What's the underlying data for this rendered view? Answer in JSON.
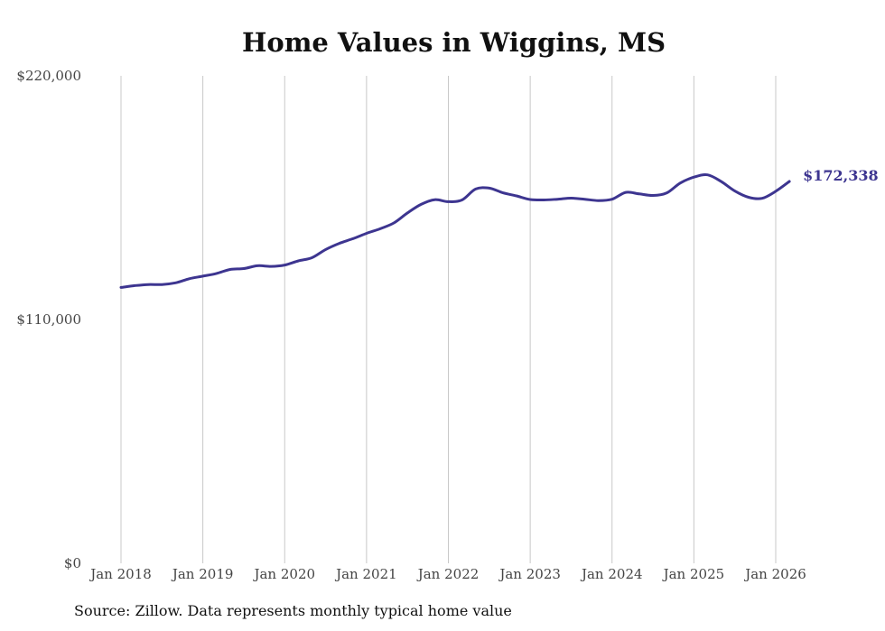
{
  "source_note": "Source: Zillow. Data represents monthly typical home value",
  "colors": {
    "line": "#3d3590",
    "grid": "#c8c8c8",
    "text": "#444444"
  },
  "chart_data": {
    "type": "line",
    "title": "Home Values in Wiggins, MS",
    "xlabel": "",
    "ylabel": "",
    "ylim": [
      0,
      220000
    ],
    "yticks": [
      0,
      110000,
      220000
    ],
    "ytick_labels": [
      "$0",
      "$110,000",
      "$220,000"
    ],
    "xticks": [
      2018,
      2019,
      2020,
      2021,
      2022,
      2023,
      2024,
      2025,
      2026
    ],
    "xtick_labels": [
      "Jan 2018",
      "Jan 2019",
      "Jan 2020",
      "Jan 2021",
      "Jan 2022",
      "Jan 2023",
      "Jan 2024",
      "Jan 2025",
      "Jan 2026"
    ],
    "grid": "vertical",
    "end_label": "$172,338",
    "series": [
      {
        "name": "Typical home value",
        "x": [
          2018.0,
          2018.167,
          2018.333,
          2018.5,
          2018.667,
          2018.833,
          2019.0,
          2019.167,
          2019.333,
          2019.5,
          2019.667,
          2019.833,
          2020.0,
          2020.167,
          2020.333,
          2020.5,
          2020.667,
          2020.833,
          2021.0,
          2021.167,
          2021.333,
          2021.5,
          2021.667,
          2021.833,
          2022.0,
          2022.167,
          2022.333,
          2022.5,
          2022.667,
          2022.833,
          2023.0,
          2023.167,
          2023.333,
          2023.5,
          2023.667,
          2023.833,
          2024.0,
          2024.167,
          2024.333,
          2024.5,
          2024.667,
          2024.833,
          2025.0,
          2025.167,
          2025.333,
          2025.5,
          2025.667,
          2025.833,
          2026.0,
          2026.167
        ],
        "values": [
          124500,
          125300,
          125800,
          125800,
          126600,
          128400,
          129600,
          130800,
          132600,
          133000,
          134300,
          134000,
          134600,
          136500,
          137900,
          141600,
          144400,
          146500,
          148900,
          151000,
          153600,
          158100,
          162000,
          164100,
          163200,
          164000,
          168900,
          169300,
          167200,
          165800,
          164200,
          164000,
          164300,
          164800,
          164300,
          163700,
          164300,
          167400,
          166700,
          166000,
          167100,
          171600,
          174300,
          175300,
          172300,
          168000,
          165200,
          164700,
          167900,
          172338
        ]
      }
    ]
  }
}
